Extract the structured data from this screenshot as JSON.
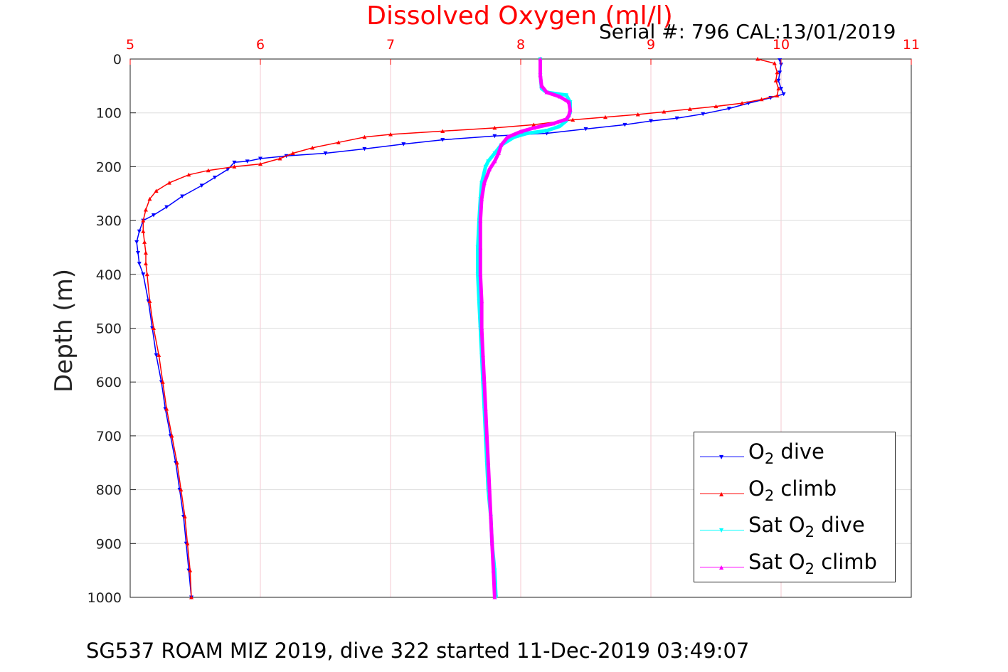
{
  "header": {
    "title": "Dissolved Oxygen (ml/l)",
    "serial": "Serial #: 796  CAL:13/01/2019"
  },
  "footer": {
    "text": "SG537 ROAM MIZ 2019, dive 322 started 11-Dec-2019 03:49:07"
  },
  "chart_data": {
    "type": "line",
    "title": "Dissolved Oxygen (ml/l)",
    "xlabel": "Dissolved Oxygen (ml/l)",
    "ylabel": "Depth (m)",
    "xlim": [
      5,
      11
    ],
    "ylim": [
      0,
      1000
    ],
    "y_reversed": true,
    "x_axis_position": "top",
    "x_ticks": [
      "5",
      "6",
      "7",
      "8",
      "9",
      "10",
      "11"
    ],
    "y_ticks": [
      "0",
      "100",
      "200",
      "300",
      "400",
      "500",
      "600",
      "700",
      "800",
      "900",
      "1000"
    ],
    "grid": true,
    "legend_position": "bottom-right",
    "colors": {
      "o2_dive": "#0000ff",
      "o2_climb": "#ff0000",
      "sat_dive": "#00ffff",
      "sat_climb": "#ff00ff",
      "x_tick_color": "#ff0000",
      "grid_color": "#f4c8d0"
    },
    "series": [
      {
        "name": "O2 dive",
        "color": "#0000ff",
        "marker": "triangle-down",
        "points": [
          [
            9.99,
            2
          ],
          [
            10.0,
            10
          ],
          [
            9.99,
            25
          ],
          [
            9.98,
            40
          ],
          [
            10.0,
            55
          ],
          [
            10.02,
            65
          ],
          [
            9.92,
            72
          ],
          [
            9.75,
            82
          ],
          [
            9.6,
            92
          ],
          [
            9.4,
            102
          ],
          [
            9.2,
            110
          ],
          [
            9.0,
            115
          ],
          [
            8.8,
            122
          ],
          [
            8.5,
            130
          ],
          [
            8.2,
            138
          ],
          [
            7.8,
            143
          ],
          [
            7.4,
            150
          ],
          [
            7.1,
            158
          ],
          [
            6.8,
            167
          ],
          [
            6.5,
            175
          ],
          [
            6.2,
            180
          ],
          [
            6.0,
            185
          ],
          [
            5.9,
            190
          ],
          [
            5.8,
            192
          ],
          [
            5.75,
            205
          ],
          [
            5.65,
            220
          ],
          [
            5.55,
            235
          ],
          [
            5.4,
            255
          ],
          [
            5.28,
            275
          ],
          [
            5.18,
            290
          ],
          [
            5.1,
            300
          ],
          [
            5.07,
            320
          ],
          [
            5.05,
            340
          ],
          [
            5.06,
            360
          ],
          [
            5.07,
            380
          ],
          [
            5.1,
            400
          ],
          [
            5.14,
            450
          ],
          [
            5.17,
            500
          ],
          [
            5.2,
            550
          ],
          [
            5.24,
            600
          ],
          [
            5.27,
            650
          ],
          [
            5.31,
            700
          ],
          [
            5.35,
            750
          ],
          [
            5.38,
            800
          ],
          [
            5.41,
            850
          ],
          [
            5.43,
            900
          ],
          [
            5.45,
            950
          ],
          [
            5.47,
            1000
          ]
        ]
      },
      {
        "name": "O2 climb",
        "color": "#ff0000",
        "marker": "triangle-up",
        "points": [
          [
            9.82,
            0
          ],
          [
            9.95,
            8
          ],
          [
            9.97,
            25
          ],
          [
            9.96,
            40
          ],
          [
            9.98,
            55
          ],
          [
            9.97,
            68
          ],
          [
            9.85,
            75
          ],
          [
            9.7,
            82
          ],
          [
            9.5,
            88
          ],
          [
            9.3,
            93
          ],
          [
            9.1,
            98
          ],
          [
            8.9,
            103
          ],
          [
            8.65,
            108
          ],
          [
            8.4,
            113
          ],
          [
            8.1,
            122
          ],
          [
            7.8,
            128
          ],
          [
            7.4,
            134
          ],
          [
            7.0,
            140
          ],
          [
            6.8,
            145
          ],
          [
            6.6,
            155
          ],
          [
            6.4,
            165
          ],
          [
            6.25,
            175
          ],
          [
            6.15,
            185
          ],
          [
            6.0,
            195
          ],
          [
            5.8,
            200
          ],
          [
            5.6,
            207
          ],
          [
            5.45,
            215
          ],
          [
            5.3,
            230
          ],
          [
            5.2,
            245
          ],
          [
            5.15,
            260
          ],
          [
            5.12,
            280
          ],
          [
            5.1,
            300
          ],
          [
            5.1,
            320
          ],
          [
            5.11,
            340
          ],
          [
            5.12,
            360
          ],
          [
            5.12,
            380
          ],
          [
            5.13,
            400
          ],
          [
            5.15,
            450
          ],
          [
            5.18,
            500
          ],
          [
            5.22,
            550
          ],
          [
            5.25,
            600
          ],
          [
            5.28,
            650
          ],
          [
            5.32,
            700
          ],
          [
            5.36,
            750
          ],
          [
            5.39,
            800
          ],
          [
            5.42,
            850
          ],
          [
            5.44,
            900
          ],
          [
            5.46,
            950
          ],
          [
            5.47,
            1000
          ]
        ]
      },
      {
        "name": "Sat O2 dive",
        "color": "#00ffff",
        "marker": "triangle-down",
        "points": [
          [
            8.15,
            0
          ],
          [
            8.15,
            30
          ],
          [
            8.16,
            55
          ],
          [
            8.2,
            62
          ],
          [
            8.35,
            67
          ],
          [
            8.38,
            80
          ],
          [
            8.38,
            100
          ],
          [
            8.35,
            115
          ],
          [
            8.3,
            125
          ],
          [
            8.2,
            133
          ],
          [
            8.05,
            138
          ],
          [
            7.95,
            145
          ],
          [
            7.85,
            160
          ],
          [
            7.8,
            175
          ],
          [
            7.75,
            190
          ],
          [
            7.73,
            200
          ],
          [
            7.7,
            230
          ],
          [
            7.69,
            260
          ],
          [
            7.68,
            300
          ],
          [
            7.67,
            350
          ],
          [
            7.67,
            400
          ],
          [
            7.68,
            450
          ],
          [
            7.69,
            500
          ],
          [
            7.7,
            550
          ],
          [
            7.71,
            600
          ],
          [
            7.72,
            650
          ],
          [
            7.73,
            700
          ],
          [
            7.74,
            750
          ],
          [
            7.75,
            800
          ],
          [
            7.77,
            850
          ],
          [
            7.78,
            900
          ],
          [
            7.8,
            950
          ],
          [
            7.81,
            1000
          ]
        ]
      },
      {
        "name": "Sat O2 climb",
        "color": "#ff00ff",
        "marker": "triangle-up",
        "points": [
          [
            8.15,
            0
          ],
          [
            8.15,
            30
          ],
          [
            8.16,
            50
          ],
          [
            8.2,
            62
          ],
          [
            8.3,
            70
          ],
          [
            8.37,
            80
          ],
          [
            8.38,
            95
          ],
          [
            8.37,
            105
          ],
          [
            8.35,
            112
          ],
          [
            8.25,
            120
          ],
          [
            8.1,
            128
          ],
          [
            8.0,
            135
          ],
          [
            7.9,
            145
          ],
          [
            7.85,
            160
          ],
          [
            7.83,
            175
          ],
          [
            7.8,
            190
          ],
          [
            7.76,
            205
          ],
          [
            7.72,
            230
          ],
          [
            7.7,
            260
          ],
          [
            7.69,
            300
          ],
          [
            7.69,
            350
          ],
          [
            7.69,
            400
          ],
          [
            7.7,
            450
          ],
          [
            7.7,
            500
          ],
          [
            7.71,
            550
          ],
          [
            7.72,
            600
          ],
          [
            7.73,
            650
          ],
          [
            7.74,
            700
          ],
          [
            7.75,
            750
          ],
          [
            7.76,
            800
          ],
          [
            7.77,
            850
          ],
          [
            7.78,
            900
          ],
          [
            7.79,
            950
          ],
          [
            7.8,
            1000
          ]
        ]
      }
    ]
  },
  "legend": {
    "items": [
      {
        "prefix": "O",
        "sub": "2",
        "suffix": " dive",
        "color": "#0000ff",
        "marker": "▼"
      },
      {
        "prefix": "O",
        "sub": "2",
        "suffix": " climb",
        "color": "#ff0000",
        "marker": "▲"
      },
      {
        "prefix": "Sat O",
        "sub": "2",
        "suffix": " dive",
        "color": "#00ffff",
        "marker": "▼"
      },
      {
        "prefix": "Sat O",
        "sub": "2",
        "suffix": " climb",
        "color": "#ff00ff",
        "marker": "▲"
      }
    ]
  }
}
